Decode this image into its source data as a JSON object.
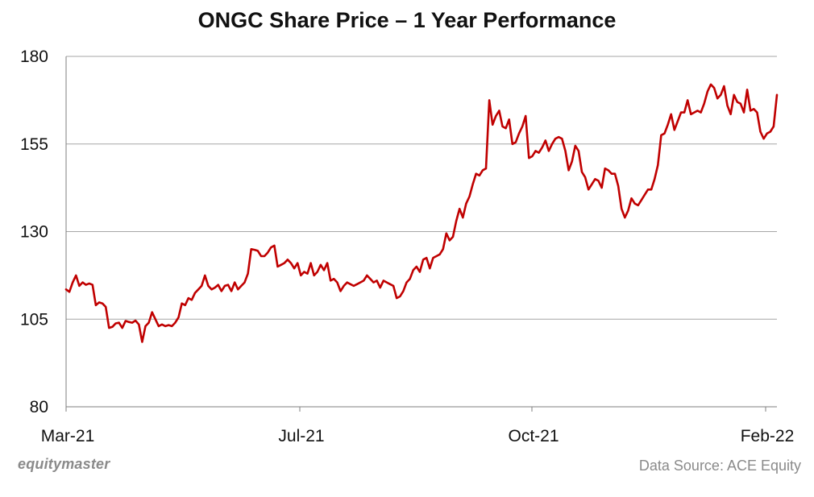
{
  "chart_data": {
    "type": "line",
    "title": "ONGC Share Price – 1 Year Performance",
    "xlabel": "",
    "ylabel": "",
    "ylim": [
      80,
      180
    ],
    "yticks": [
      80,
      105,
      130,
      155,
      180
    ],
    "xtick_labels": [
      "Mar-21",
      "Jul-21",
      "Oct-21",
      "Feb-22"
    ],
    "grid": "horizontal",
    "line_color": "#c00000",
    "series": [
      {
        "points": [
          [
            0,
            113.5
          ],
          [
            1,
            112.8
          ],
          [
            2,
            115.5
          ],
          [
            3,
            117.5
          ],
          [
            4,
            114.5
          ],
          [
            5,
            115.5
          ],
          [
            6,
            114.8
          ],
          [
            7,
            115.2
          ],
          [
            8,
            114.8
          ],
          [
            9,
            109.0
          ],
          [
            10,
            109.8
          ],
          [
            11,
            109.5
          ],
          [
            12,
            108.5
          ],
          [
            13,
            102.5
          ],
          [
            14,
            102.8
          ],
          [
            15,
            103.8
          ],
          [
            16,
            104.0
          ],
          [
            17,
            102.5
          ],
          [
            18,
            104.5
          ],
          [
            19,
            104.2
          ],
          [
            20,
            104.0
          ],
          [
            21,
            104.6
          ],
          [
            22,
            103.5
          ],
          [
            23,
            98.5
          ],
          [
            24,
            103.0
          ],
          [
            25,
            104.0
          ],
          [
            26,
            107.0
          ],
          [
            27,
            105.0
          ],
          [
            28,
            103.0
          ],
          [
            29,
            103.5
          ],
          [
            30,
            103.0
          ],
          [
            31,
            103.3
          ],
          [
            32,
            103.0
          ],
          [
            33,
            104.0
          ],
          [
            34,
            105.5
          ],
          [
            35,
            109.5
          ],
          [
            36,
            109.0
          ],
          [
            37,
            111.0
          ],
          [
            38,
            110.5
          ],
          [
            39,
            112.5
          ],
          [
            40,
            113.5
          ],
          [
            41,
            114.5
          ],
          [
            42,
            117.5
          ],
          [
            43,
            114.5
          ],
          [
            44,
            113.5
          ],
          [
            45,
            114.0
          ],
          [
            46,
            114.8
          ],
          [
            47,
            113.0
          ],
          [
            48,
            114.5
          ],
          [
            49,
            114.8
          ],
          [
            50,
            113.0
          ],
          [
            51,
            115.5
          ],
          [
            52,
            113.5
          ],
          [
            53,
            114.5
          ],
          [
            54,
            115.5
          ],
          [
            55,
            118.0
          ],
          [
            56,
            125.0
          ],
          [
            57,
            124.8
          ],
          [
            58,
            124.5
          ],
          [
            59,
            123.0
          ],
          [
            60,
            123.0
          ],
          [
            61,
            124.0
          ],
          [
            62,
            125.5
          ],
          [
            63,
            126.0
          ],
          [
            64,
            120.0
          ],
          [
            65,
            120.5
          ],
          [
            66,
            121.0
          ],
          [
            67,
            122.0
          ],
          [
            68,
            121.0
          ],
          [
            69,
            119.5
          ],
          [
            70,
            121.0
          ],
          [
            71,
            117.5
          ],
          [
            72,
            118.5
          ],
          [
            73,
            118.0
          ],
          [
            74,
            121.0
          ],
          [
            75,
            117.5
          ],
          [
            76,
            118.5
          ],
          [
            77,
            120.5
          ],
          [
            78,
            119.0
          ],
          [
            79,
            121.0
          ],
          [
            80,
            116.0
          ],
          [
            81,
            116.5
          ],
          [
            82,
            115.5
          ],
          [
            83,
            113.0
          ],
          [
            84,
            114.5
          ],
          [
            85,
            115.5
          ],
          [
            86,
            115.0
          ],
          [
            87,
            114.5
          ],
          [
            88,
            115.0
          ],
          [
            89,
            115.5
          ],
          [
            90,
            116.0
          ],
          [
            91,
            117.5
          ],
          [
            92,
            116.5
          ],
          [
            93,
            115.5
          ],
          [
            94,
            116.0
          ],
          [
            95,
            114.0
          ],
          [
            96,
            116.0
          ],
          [
            97,
            115.5
          ],
          [
            98,
            115.0
          ],
          [
            99,
            114.5
          ],
          [
            100,
            111.0
          ],
          [
            101,
            111.5
          ],
          [
            102,
            113.0
          ],
          [
            103,
            115.5
          ],
          [
            104,
            116.5
          ],
          [
            105,
            119.0
          ],
          [
            106,
            120.0
          ],
          [
            107,
            118.5
          ],
          [
            108,
            122.0
          ],
          [
            109,
            122.5
          ],
          [
            110,
            119.5
          ],
          [
            111,
            122.5
          ],
          [
            112,
            123.0
          ],
          [
            113,
            123.5
          ],
          [
            114,
            125.0
          ],
          [
            115,
            129.5
          ],
          [
            116,
            127.5
          ],
          [
            117,
            128.5
          ],
          [
            118,
            133.0
          ],
          [
            119,
            136.5
          ],
          [
            120,
            134.0
          ],
          [
            121,
            138.0
          ],
          [
            122,
            140.0
          ],
          [
            123,
            143.5
          ],
          [
            124,
            146.5
          ],
          [
            125,
            146.0
          ],
          [
            126,
            147.5
          ],
          [
            127,
            148.0
          ],
          [
            128,
            167.5
          ],
          [
            129,
            160.5
          ],
          [
            130,
            163.0
          ],
          [
            131,
            164.5
          ],
          [
            132,
            160.0
          ],
          [
            133,
            159.5
          ],
          [
            134,
            162.0
          ],
          [
            135,
            155.0
          ],
          [
            136,
            155.5
          ],
          [
            137,
            158.0
          ],
          [
            138,
            160.0
          ],
          [
            139,
            163.0
          ],
          [
            140,
            151.0
          ],
          [
            141,
            151.5
          ],
          [
            142,
            153.0
          ],
          [
            143,
            152.5
          ],
          [
            144,
            154.0
          ],
          [
            145,
            156.0
          ],
          [
            146,
            153.0
          ],
          [
            147,
            155.0
          ],
          [
            148,
            156.5
          ],
          [
            149,
            157.0
          ],
          [
            150,
            156.5
          ],
          [
            151,
            153.0
          ],
          [
            152,
            147.5
          ],
          [
            153,
            150.0
          ],
          [
            154,
            154.5
          ],
          [
            155,
            153.0
          ],
          [
            156,
            147.0
          ],
          [
            157,
            145.5
          ],
          [
            158,
            142.0
          ],
          [
            159,
            143.5
          ],
          [
            160,
            145.0
          ],
          [
            161,
            144.5
          ],
          [
            162,
            142.5
          ],
          [
            163,
            148.0
          ],
          [
            164,
            147.5
          ],
          [
            165,
            146.5
          ],
          [
            166,
            146.5
          ],
          [
            167,
            143.0
          ],
          [
            168,
            136.5
          ],
          [
            169,
            134.0
          ],
          [
            170,
            136.0
          ],
          [
            171,
            139.5
          ],
          [
            172,
            138.0
          ],
          [
            173,
            137.5
          ],
          [
            174,
            139.0
          ],
          [
            175,
            140.5
          ],
          [
            176,
            142.0
          ],
          [
            177,
            142.0
          ],
          [
            178,
            145.0
          ],
          [
            179,
            149.0
          ],
          [
            180,
            157.5
          ],
          [
            181,
            158.0
          ],
          [
            182,
            160.5
          ],
          [
            183,
            163.5
          ],
          [
            184,
            159.0
          ],
          [
            185,
            161.5
          ],
          [
            186,
            164.0
          ],
          [
            187,
            164.0
          ],
          [
            188,
            167.5
          ],
          [
            189,
            163.5
          ],
          [
            190,
            164.0
          ],
          [
            191,
            164.5
          ],
          [
            192,
            164.0
          ],
          [
            193,
            166.5
          ],
          [
            194,
            170.0
          ],
          [
            195,
            172.0
          ],
          [
            196,
            171.0
          ],
          [
            197,
            168.0
          ],
          [
            198,
            169.0
          ],
          [
            199,
            171.5
          ],
          [
            200,
            166.0
          ],
          [
            201,
            163.5
          ],
          [
            202,
            169.0
          ],
          [
            203,
            167.0
          ],
          [
            204,
            166.5
          ],
          [
            205,
            164.0
          ],
          [
            206,
            170.5
          ],
          [
            207,
            164.5
          ],
          [
            208,
            165.0
          ],
          [
            209,
            164.0
          ],
          [
            210,
            158.5
          ],
          [
            211,
            156.5
          ],
          [
            212,
            158.0
          ],
          [
            213,
            158.5
          ],
          [
            214,
            160.0
          ],
          [
            215,
            169.0
          ]
        ]
      }
    ]
  },
  "footer": {
    "brand": "equitymaster",
    "source": "Data Source: ACE Equity"
  }
}
